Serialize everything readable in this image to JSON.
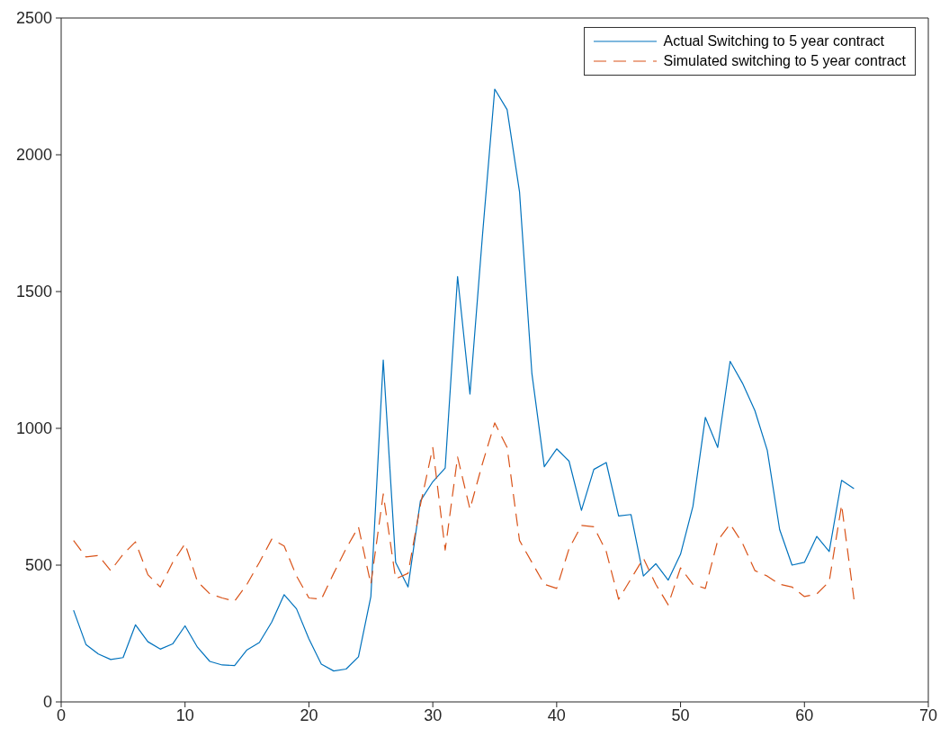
{
  "chart_data": {
    "type": "line",
    "x": [
      1,
      2,
      3,
      4,
      5,
      6,
      7,
      8,
      9,
      10,
      11,
      12,
      13,
      14,
      15,
      16,
      17,
      18,
      19,
      20,
      21,
      22,
      23,
      24,
      25,
      26,
      27,
      28,
      29,
      30,
      31,
      32,
      33,
      34,
      35,
      36,
      37,
      38,
      39,
      40,
      41,
      42,
      43,
      44,
      45,
      46,
      47,
      48,
      49,
      50,
      51,
      52,
      53,
      54,
      55,
      56,
      57,
      58,
      59,
      60,
      61,
      62,
      63,
      64
    ],
    "series": [
      {
        "name": "Actual Switching to 5 year contract",
        "color": "#0072bd",
        "line_style": "solid",
        "values": [
          335,
          210,
          175,
          155,
          162,
          282,
          220,
          193,
          212,
          278,
          200,
          148,
          135,
          133,
          190,
          217,
          292,
          392,
          340,
          230,
          138,
          113,
          120,
          165,
          385,
          1250,
          510,
          420,
          735,
          805,
          855,
          1555,
          1125,
          1700,
          2240,
          2165,
          1865,
          1200,
          860,
          925,
          880,
          700,
          850,
          875,
          680,
          685,
          460,
          505,
          445,
          540,
          715,
          1040,
          930,
          1245,
          1165,
          1065,
          920,
          630,
          500,
          510,
          605,
          550,
          810,
          780
        ]
      },
      {
        "name": "Simulated switching to 5 year contract",
        "color": "#d95319",
        "line_style": "dashed",
        "values": [
          590,
          530,
          535,
          480,
          540,
          585,
          465,
          420,
          510,
          578,
          440,
          395,
          380,
          368,
          430,
          510,
          595,
          570,
          460,
          380,
          375,
          470,
          560,
          640,
          430,
          760,
          450,
          470,
          720,
          930,
          555,
          895,
          705,
          870,
          1020,
          930,
          590,
          510,
          430,
          415,
          560,
          645,
          640,
          550,
          375,
          450,
          525,
          430,
          355,
          490,
          430,
          415,
          590,
          650,
          580,
          480,
          460,
          430,
          420,
          385,
          395,
          440,
          720,
          375
        ]
      }
    ],
    "xlim": [
      0,
      70
    ],
    "xticks": [
      0,
      10,
      20,
      30,
      40,
      50,
      60,
      70
    ],
    "ylim": [
      0,
      2500
    ],
    "yticks": [
      0,
      500,
      1000,
      1500,
      2000,
      2500
    ],
    "grid": false,
    "legend": "top right",
    "marker": "none"
  }
}
